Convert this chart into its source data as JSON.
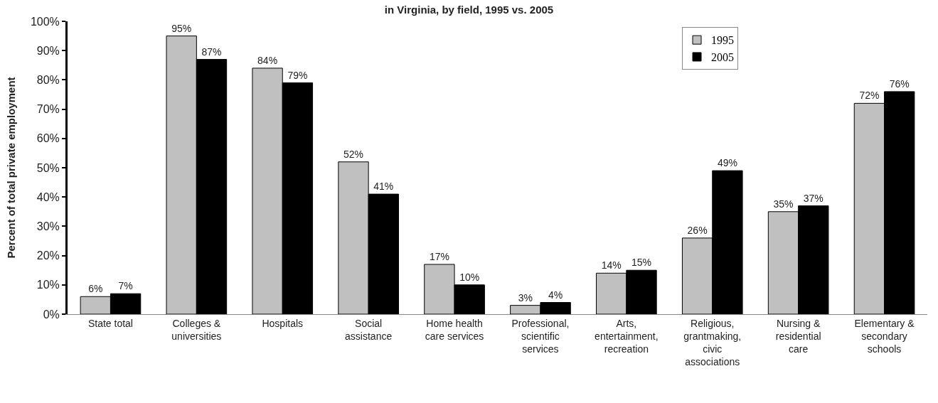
{
  "chart_data": {
    "type": "bar",
    "title": "in Virginia, by field, 1995 vs. 2005",
    "ylabel": "Percent of total private employment",
    "categories": [
      "State total",
      "Colleges & universities",
      "Hospitals",
      "Social assistance",
      "Home health care services",
      "Professional, scientific services",
      "Arts, entertainment, recreation",
      "Religious, grantmaking, civic associations",
      "Nursing & residential care",
      "Elementary & secondary schools"
    ],
    "series": [
      {
        "name": "1995",
        "color": "#c0c0c0",
        "values": [
          6,
          95,
          84,
          52,
          17,
          3,
          14,
          26,
          35,
          72
        ],
        "value_labels": [
          "6%",
          "95%",
          "84%",
          "52%",
          "17%",
          "3%",
          "14%",
          "26%",
          "35%",
          "72%"
        ]
      },
      {
        "name": "2005",
        "color": "#000000",
        "values": [
          7,
          87,
          79,
          41,
          10,
          4,
          15,
          49,
          37,
          76
        ],
        "value_labels": [
          "7%",
          "87%",
          "79%",
          "41%",
          "10%",
          "4%",
          "15%",
          "49%",
          "37%",
          "76%"
        ]
      }
    ],
    "ylim": [
      0,
      100
    ],
    "yticks": [
      {
        "value": 0,
        "label": "0%"
      },
      {
        "value": 10,
        "label": "10%"
      },
      {
        "value": 20,
        "label": "20%"
      },
      {
        "value": 30,
        "label": "30%"
      },
      {
        "value": 40,
        "label": "40%"
      },
      {
        "value": 50,
        "label": "50%"
      },
      {
        "value": 60,
        "label": "60%"
      },
      {
        "value": 70,
        "label": "70%"
      },
      {
        "value": 80,
        "label": "80%"
      },
      {
        "value": 90,
        "label": "90%"
      },
      {
        "value": 100,
        "label": "100%"
      }
    ],
    "grid": false,
    "legend": "top right"
  }
}
